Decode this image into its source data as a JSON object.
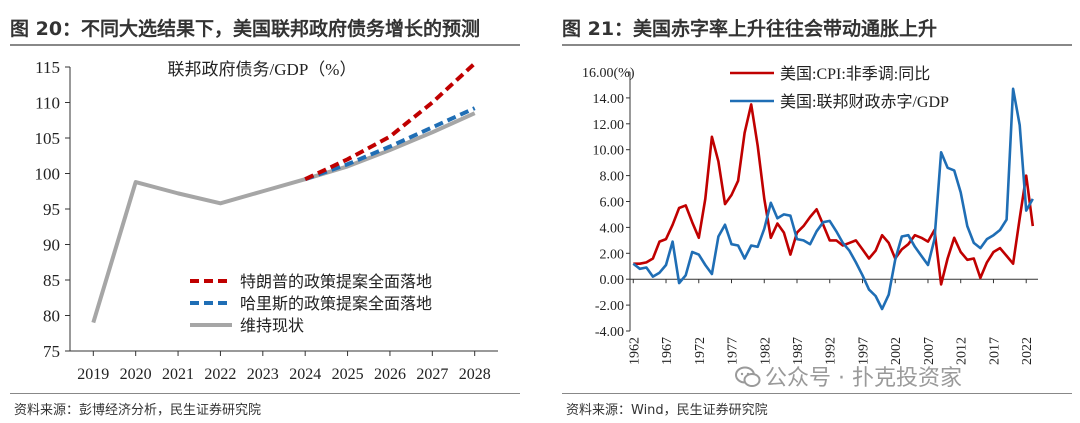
{
  "left_panel": {
    "title": "图 20：不同大选结果下，美国联邦政府债务增长的预测",
    "source": "资料来源：彭博经济分析，民生证券研究院"
  },
  "right_panel": {
    "title": "图 21：美国赤字率上升往往会带动通胀上升",
    "source": "资料来源：Wind，民生证券研究院"
  },
  "watermark": {
    "text": "公众号 · 扑克投资家",
    "icon": "wechat-icon"
  },
  "colors": {
    "red": "#c00000",
    "blue": "#1f6eb5",
    "gray": "#a6a6a6"
  },
  "chart_data": [
    {
      "type": "line",
      "title": "联邦政府债务/GDP（%）",
      "xlabel": "",
      "ylabel": "",
      "xlim": [
        2019,
        2028
      ],
      "ylim": [
        75,
        115
      ],
      "yticks": [
        75,
        80,
        85,
        90,
        95,
        100,
        105,
        110,
        115
      ],
      "xticks": [
        "2019",
        "2020",
        "2021",
        "2022",
        "2023",
        "2024",
        "2025",
        "2026",
        "2027",
        "2028"
      ],
      "grid": false,
      "legend_position": "bottom-center",
      "series": [
        {
          "name": "特朗普的政策提案全面落地",
          "color": "#c00000",
          "style": "dashed",
          "x": [
            2024,
            2025,
            2026,
            2027,
            2028
          ],
          "y": [
            99.2,
            102.0,
            105.2,
            110.0,
            115.5
          ]
        },
        {
          "name": "哈里斯的政策提案全面落地",
          "color": "#1f6eb5",
          "style": "dashed",
          "x": [
            2024,
            2025,
            2026,
            2027,
            2028
          ],
          "y": [
            99.2,
            101.3,
            103.8,
            106.5,
            109.2
          ]
        },
        {
          "name": "维持现状",
          "color": "#a6a6a6",
          "style": "solid",
          "x": [
            2019,
            2020,
            2021,
            2022,
            2023,
            2024,
            2025,
            2026,
            2027,
            2028
          ],
          "y": [
            79.0,
            98.8,
            97.2,
            95.8,
            97.5,
            99.2,
            101.0,
            103.3,
            105.8,
            108.5
          ]
        }
      ]
    },
    {
      "type": "line",
      "title": "",
      "ylabel_unit": "(%)",
      "xlabel": "",
      "xlim": [
        1962,
        2024
      ],
      "ylim": [
        -4,
        16
      ],
      "yticks": [
        "-4.00",
        "-2.00",
        "0.00",
        "2.00",
        "4.00",
        "6.00",
        "8.00",
        "10.00",
        "12.00",
        "14.00",
        "16.00"
      ],
      "xticks": [
        "1962",
        "1967",
        "1972",
        "1977",
        "1982",
        "1987",
        "1992",
        "1997",
        "2002",
        "2007",
        "2012",
        "2017",
        "2022"
      ],
      "grid": false,
      "legend_position": "top-center",
      "series": [
        {
          "name": "美国:CPI:非季调:同比",
          "color": "#c00000",
          "x": [
            1962,
            1963,
            1964,
            1965,
            1966,
            1967,
            1968,
            1969,
            1970,
            1971,
            1972,
            1973,
            1974,
            1975,
            1976,
            1977,
            1978,
            1979,
            1980,
            1981,
            1982,
            1983,
            1984,
            1985,
            1986,
            1987,
            1988,
            1989,
            1990,
            1991,
            1992,
            1993,
            1994,
            1995,
            1996,
            1997,
            1998,
            1999,
            2000,
            2001,
            2002,
            2003,
            2004,
            2005,
            2006,
            2007,
            2008,
            2009,
            2010,
            2011,
            2012,
            2013,
            2014,
            2015,
            2016,
            2017,
            2018,
            2019,
            2020,
            2021,
            2022,
            2023
          ],
          "y": [
            1.2,
            1.2,
            1.3,
            1.6,
            2.9,
            3.1,
            4.2,
            5.5,
            5.7,
            4.4,
            3.2,
            6.2,
            11.0,
            9.1,
            5.8,
            6.5,
            7.6,
            11.3,
            13.5,
            10.3,
            6.2,
            3.2,
            4.3,
            3.6,
            1.9,
            3.6,
            4.1,
            4.8,
            5.4,
            4.2,
            3.0,
            3.0,
            2.6,
            2.8,
            3.0,
            2.3,
            1.6,
            2.2,
            3.4,
            2.8,
            1.6,
            2.3,
            2.7,
            3.4,
            3.2,
            2.9,
            3.8,
            -0.4,
            1.6,
            3.2,
            2.1,
            1.5,
            1.6,
            0.1,
            1.3,
            2.1,
            2.4,
            1.8,
            1.2,
            4.7,
            8.0,
            4.1
          ]
        },
        {
          "name": "美国:联邦财政赤字/GDP",
          "color": "#1f6eb5",
          "x": [
            1962,
            1963,
            1964,
            1965,
            1966,
            1967,
            1968,
            1969,
            1970,
            1971,
            1972,
            1973,
            1974,
            1975,
            1976,
            1977,
            1978,
            1979,
            1980,
            1981,
            1982,
            1983,
            1984,
            1985,
            1986,
            1987,
            1988,
            1989,
            1990,
            1991,
            1992,
            1993,
            1994,
            1995,
            1996,
            1997,
            1998,
            1999,
            2000,
            2001,
            2002,
            2003,
            2004,
            2005,
            2006,
            2007,
            2008,
            2009,
            2010,
            2011,
            2012,
            2013,
            2014,
            2015,
            2016,
            2017,
            2018,
            2019,
            2020,
            2021,
            2022,
            2023
          ],
          "y": [
            1.2,
            0.8,
            0.9,
            0.2,
            0.5,
            1.1,
            2.9,
            -0.3,
            0.3,
            2.1,
            1.9,
            1.1,
            0.4,
            3.3,
            4.2,
            2.7,
            2.6,
            1.6,
            2.6,
            2.5,
            3.9,
            5.9,
            4.7,
            5.0,
            4.9,
            3.1,
            3.0,
            2.7,
            3.7,
            4.4,
            4.5,
            3.7,
            2.8,
            2.2,
            1.3,
            0.3,
            -0.8,
            -1.3,
            -2.3,
            -1.2,
            1.5,
            3.3,
            3.4,
            2.5,
            1.8,
            1.1,
            3.1,
            9.8,
            8.6,
            8.4,
            6.7,
            4.1,
            2.8,
            2.4,
            3.1,
            3.4,
            3.8,
            4.6,
            14.7,
            11.9,
            5.3,
            6.2
          ]
        }
      ]
    }
  ]
}
